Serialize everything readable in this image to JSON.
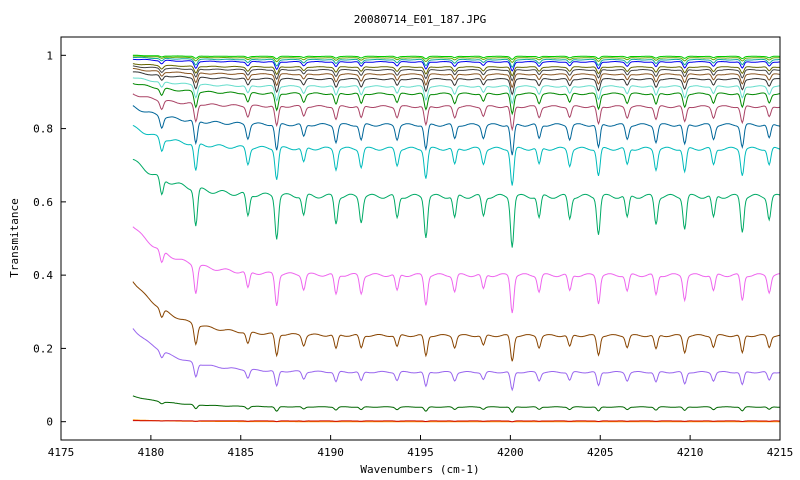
{
  "chart_data": {
    "type": "line",
    "title": "20080714_E01_187.JPG",
    "xlabel": "Wavenumbers (cm-1)",
    "ylabel": "Transmitance",
    "xlim": [
      4175,
      4215
    ],
    "ylim": [
      -0.05,
      1.05
    ],
    "x_ticks": [
      "4175",
      "4180",
      "4185",
      "4190",
      "4195",
      "4200",
      "4205",
      "4210",
      "4215"
    ],
    "y_ticks": [
      "0",
      "0.2",
      "0.4",
      "0.6",
      "0.8",
      "1"
    ],
    "grid": false,
    "x_start": 4179,
    "line_positions": [
      4180.6,
      4182.5,
      4185.4,
      4187.0,
      4188.5,
      4190.3,
      4191.7,
      4193.7,
      4195.3,
      4196.9,
      4198.5,
      4200.1,
      4201.6,
      4203.3,
      4204.9,
      4206.5,
      4208.1,
      4209.7,
      4211.3,
      4212.9,
      4214.4
    ],
    "line_strengths": [
      0.35,
      0.75,
      0.45,
      0.85,
      0.4,
      0.55,
      0.5,
      0.45,
      0.8,
      0.45,
      0.4,
      1.0,
      0.45,
      0.45,
      0.75,
      0.45,
      0.55,
      0.65,
      0.45,
      0.7,
      0.45
    ],
    "series": [
      {
        "color": "#ff9900",
        "baseline": 0.0,
        "left": 0.005,
        "depth": 0.0
      },
      {
        "color": "#cc0000",
        "baseline": 0.002,
        "left": 0.003,
        "depth": 0.002
      },
      {
        "color": "#006600",
        "baseline": 0.04,
        "left": 0.07,
        "depth": 0.015
      },
      {
        "color": "#9966ee",
        "baseline": 0.135,
        "left": 0.255,
        "depth": 0.05
      },
      {
        "color": "#884400",
        "baseline": 0.235,
        "left": 0.385,
        "depth": 0.07
      },
      {
        "color": "#ee66ee",
        "baseline": 0.4,
        "left": 0.535,
        "depth": 0.1
      },
      {
        "color": "#00aa66",
        "baseline": 0.615,
        "left": 0.715,
        "depth": 0.135
      },
      {
        "color": "#00bbbb",
        "baseline": 0.745,
        "left": 0.805,
        "depth": 0.1
      },
      {
        "color": "#006699",
        "baseline": 0.81,
        "left": 0.86,
        "depth": 0.085
      },
      {
        "color": "#aa4466",
        "baseline": 0.86,
        "left": 0.895,
        "depth": 0.065
      },
      {
        "color": "#008800",
        "baseline": 0.895,
        "left": 0.925,
        "depth": 0.055
      },
      {
        "color": "#66ddcc",
        "baseline": 0.915,
        "left": 0.94,
        "depth": 0.045
      },
      {
        "color": "#333333",
        "baseline": 0.935,
        "left": 0.955,
        "depth": 0.04
      },
      {
        "color": "#885522",
        "baseline": 0.948,
        "left": 0.963,
        "depth": 0.035
      },
      {
        "color": "#444444",
        "baseline": 0.96,
        "left": 0.97,
        "depth": 0.03
      },
      {
        "color": "#666600",
        "baseline": 0.968,
        "left": 0.977,
        "depth": 0.025
      },
      {
        "color": "#0000ee",
        "baseline": 0.982,
        "left": 0.99,
        "depth": 0.025
      },
      {
        "color": "#11aa99",
        "baseline": 0.988,
        "left": 0.995,
        "depth": 0.02
      },
      {
        "color": "#66aa00",
        "baseline": 0.993,
        "left": 0.998,
        "depth": 0.012
      },
      {
        "color": "#00cc00",
        "baseline": 0.997,
        "left": 1.0,
        "depth": 0.008
      }
    ]
  }
}
